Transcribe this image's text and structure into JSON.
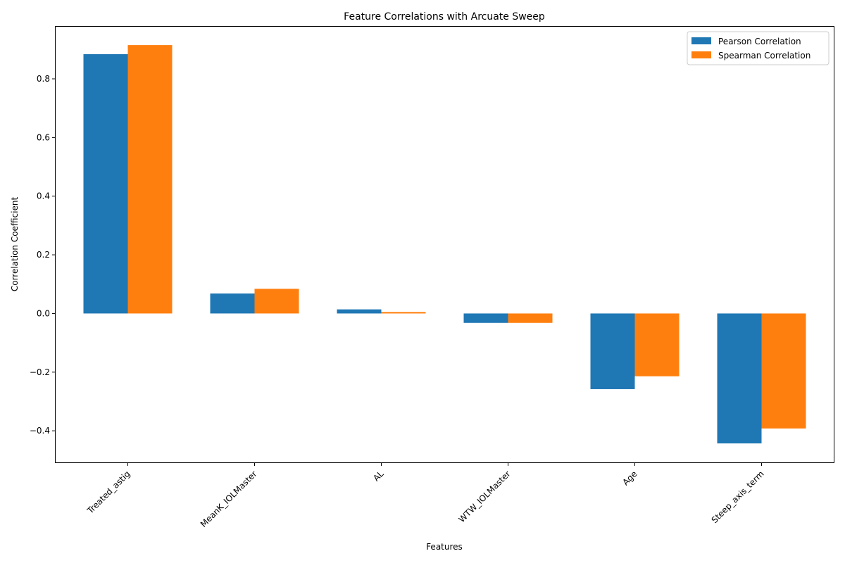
{
  "chart_data": {
    "type": "bar",
    "title": "Feature Correlations with Arcuate Sweep",
    "xlabel": "Features",
    "ylabel": "Correlation Coefficient",
    "categories": [
      "Treated_astig",
      "MeanK_IOLMaster",
      "AL",
      "WTW_IOLMaster",
      "Age",
      "Steep_axis_term"
    ],
    "series": [
      {
        "name": "Pearson Correlation",
        "color": "#1f77b4",
        "values": [
          0.884,
          0.068,
          0.014,
          -0.032,
          -0.258,
          -0.443
        ]
      },
      {
        "name": "Spearman Correlation",
        "color": "#ff7f0e",
        "values": [
          0.915,
          0.084,
          0.005,
          -0.032,
          -0.214,
          -0.392
        ]
      }
    ],
    "ylim": [
      -0.51,
      0.98
    ],
    "yticks": [
      -0.4,
      -0.2,
      0.0,
      0.2,
      0.4,
      0.6,
      0.8
    ],
    "ytick_labels": [
      "−0.4",
      "−0.2",
      "0.0",
      "0.2",
      "0.4",
      "0.6",
      "0.8"
    ],
    "grid": false,
    "legend_position": "top-right"
  }
}
